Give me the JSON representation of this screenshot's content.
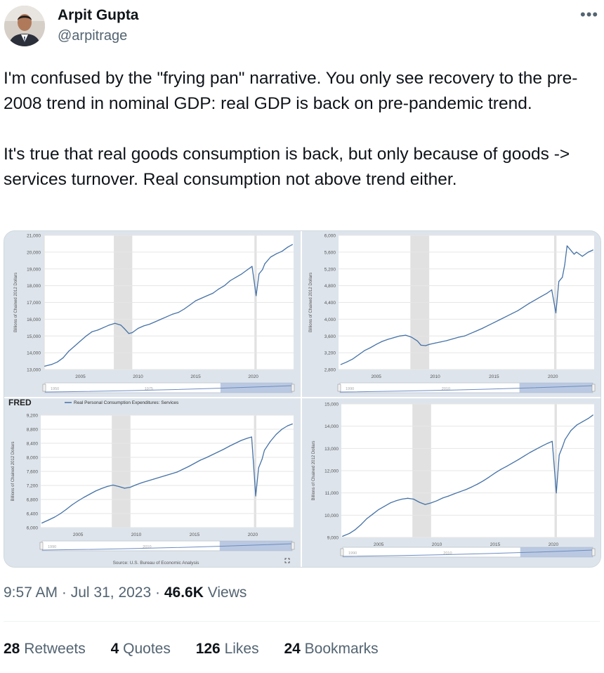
{
  "author": {
    "name": "Arpit Gupta",
    "handle": "@arpitrage"
  },
  "tweet": {
    "text": "I'm confused by the \"frying pan\" narrative. You only see recovery to the pre-2008 trend in nominal GDP: real GDP is back on pre-pandemic trend.\n\nIt's true that real goods consumption is back, but only because of goods -> services turnover. Real consumption not above trend either."
  },
  "more_icon": "more-horizontal-icon",
  "meta": {
    "time": "9:57 AM",
    "date": "Jul 31, 2023",
    "views_count": "46.6K",
    "views_label": "Views"
  },
  "stats": [
    {
      "count": "28",
      "label": "Retweets"
    },
    {
      "count": "4",
      "label": "Quotes"
    },
    {
      "count": "126",
      "label": "Likes"
    },
    {
      "count": "24",
      "label": "Bookmarks"
    }
  ],
  "colors": {
    "line": "#4572a7",
    "recession": "#e1e1e1",
    "panel": "#dde4ec"
  },
  "fred_logo": "FRED",
  "chart_source": "Source: U.S. Bureau of Economic Analysis",
  "fullscreen_icon": "fullscreen-icon",
  "chart_data": [
    {
      "type": "line",
      "ylabel": "Billions of Chained 2012 Dollars",
      "xlim": [
        2001.8,
        2023.5
      ],
      "ylim": [
        13000,
        21000
      ],
      "yticks": [
        "13,000",
        "14,000",
        "15,000",
        "16,000",
        "17,000",
        "18,000",
        "19,000",
        "20,000",
        "21,000"
      ],
      "xticks": [
        "2005",
        "2010",
        "2015",
        "2020"
      ],
      "recessions": [
        [
          2001.2,
          2001.9
        ],
        [
          2007.9,
          2009.5
        ],
        [
          2020.1,
          2020.3
        ]
      ],
      "nav_labels": [
        "1950",
        "1975"
      ],
      "x": [
        2001.9,
        2002.5,
        2003,
        2003.5,
        2004,
        2004.5,
        2005,
        2005.5,
        2006,
        2006.5,
        2007,
        2007.5,
        2008,
        2008.5,
        2008.8,
        2009.2,
        2009.5,
        2010,
        2010.5,
        2011,
        2011.5,
        2012,
        2012.5,
        2013,
        2013.5,
        2014,
        2014.5,
        2015,
        2015.5,
        2016,
        2016.5,
        2017,
        2017.5,
        2018,
        2018.5,
        2019,
        2019.5,
        2019.9,
        2020.25,
        2020.5,
        2020.8,
        2021,
        2021.5,
        2022,
        2022.5,
        2023,
        2023.4
      ],
      "values": [
        13200,
        13300,
        13450,
        13700,
        14100,
        14400,
        14700,
        15000,
        15250,
        15350,
        15500,
        15650,
        15750,
        15650,
        15450,
        15150,
        15200,
        15450,
        15600,
        15700,
        15850,
        16000,
        16150,
        16300,
        16400,
        16600,
        16850,
        17100,
        17250,
        17400,
        17550,
        17800,
        18000,
        18300,
        18500,
        18700,
        18950,
        19150,
        17400,
        18700,
        18950,
        19300,
        19700,
        19900,
        20050,
        20300,
        20450
      ]
    },
    {
      "type": "line",
      "ylabel": "Billions of Chained 2012 Dollars",
      "xlim": [
        2001.8,
        2023.5
      ],
      "ylim": [
        2800,
        6000
      ],
      "yticks": [
        "2,800",
        "3,200",
        "3,600",
        "4,000",
        "4,400",
        "4,800",
        "5,200",
        "5,600",
        "6,000"
      ],
      "xticks": [
        "2005",
        "2010",
        "2015",
        "2020"
      ],
      "recessions": [
        [
          2007.9,
          2009.5
        ],
        [
          2020.1,
          2020.3
        ]
      ],
      "nav_labels": [
        "1990",
        "2010"
      ],
      "x": [
        2002,
        2002.5,
        2003,
        2003.5,
        2004,
        2004.5,
        2005,
        2005.5,
        2006,
        2006.5,
        2007,
        2007.5,
        2008,
        2008.5,
        2008.8,
        2009.2,
        2009.5,
        2010,
        2010.5,
        2011,
        2011.5,
        2012,
        2012.5,
        2013,
        2013.5,
        2014,
        2014.5,
        2015,
        2015.5,
        2016,
        2016.5,
        2017,
        2017.5,
        2018,
        2018.5,
        2019,
        2019.5,
        2019.9,
        2020.25,
        2020.5,
        2020.8,
        2021,
        2021.2,
        2021.5,
        2021.8,
        2022,
        2022.5,
        2023,
        2023.4
      ],
      "values": [
        2920,
        2980,
        3050,
        3150,
        3250,
        3320,
        3400,
        3470,
        3520,
        3560,
        3600,
        3620,
        3570,
        3480,
        3380,
        3370,
        3400,
        3430,
        3460,
        3490,
        3530,
        3570,
        3600,
        3660,
        3720,
        3780,
        3850,
        3920,
        3990,
        4060,
        4130,
        4200,
        4290,
        4380,
        4460,
        4540,
        4620,
        4700,
        4150,
        4900,
        5000,
        5300,
        5750,
        5650,
        5550,
        5600,
        5500,
        5600,
        5650
      ]
    },
    {
      "type": "line",
      "title": "Real Personal Consumption Expenditures: Services",
      "ylabel": "Billions of Chained 2012 Dollars",
      "xlim": [
        2001.8,
        2023.5
      ],
      "ylim": [
        6000,
        9200
      ],
      "yticks": [
        "6,000",
        "6,400",
        "6,800",
        "7,200",
        "7,600",
        "8,000",
        "8,400",
        "8,800",
        "9,200"
      ],
      "xticks": [
        "2005",
        "2010",
        "2015",
        "2020"
      ],
      "recessions": [
        [
          2007.9,
          2009.5
        ],
        [
          2020.1,
          2020.3
        ]
      ],
      "nav_labels": [
        "1990",
        "2010"
      ],
      "x": [
        2001.9,
        2002.5,
        2003,
        2003.5,
        2004,
        2004.5,
        2005,
        2005.5,
        2006,
        2006.5,
        2007,
        2007.5,
        2008,
        2008.5,
        2009,
        2009.5,
        2010,
        2010.5,
        2011,
        2011.5,
        2012,
        2012.5,
        2013,
        2013.5,
        2014,
        2014.5,
        2015,
        2015.5,
        2016,
        2016.5,
        2017,
        2017.5,
        2018,
        2018.5,
        2019,
        2019.5,
        2019.9,
        2020.25,
        2020.5,
        2020.8,
        2021,
        2021.5,
        2022,
        2022.5,
        2023,
        2023.4
      ],
      "values": [
        6130,
        6220,
        6300,
        6400,
        6520,
        6650,
        6760,
        6860,
        6950,
        7040,
        7110,
        7170,
        7210,
        7170,
        7120,
        7150,
        7220,
        7280,
        7330,
        7380,
        7430,
        7480,
        7530,
        7580,
        7660,
        7740,
        7830,
        7920,
        7990,
        8070,
        8150,
        8230,
        8320,
        8400,
        8480,
        8540,
        8580,
        6900,
        7700,
        7950,
        8200,
        8450,
        8650,
        8800,
        8900,
        8950
      ]
    },
    {
      "type": "line",
      "ylabel": "Billions of Chained 2012 Dollars",
      "xlim": [
        2001.8,
        2023.5
      ],
      "ylim": [
        9000,
        15000
      ],
      "yticks": [
        "9,000",
        "10,000",
        "11,000",
        "12,000",
        "13,000",
        "14,000",
        "15,000"
      ],
      "xticks": [
        "2005",
        "2010",
        "2015",
        "2020"
      ],
      "recessions": [
        [
          2007.9,
          2009.5
        ],
        [
          2020.1,
          2020.3
        ]
      ],
      "nav_labels": [
        "1990",
        "2010"
      ],
      "x": [
        2001.9,
        2002.5,
        2003,
        2003.5,
        2004,
        2004.5,
        2005,
        2005.5,
        2006,
        2006.5,
        2007,
        2007.5,
        2008,
        2008.5,
        2009,
        2009.5,
        2010,
        2010.5,
        2011,
        2011.5,
        2012,
        2012.5,
        2013,
        2013.5,
        2014,
        2014.5,
        2015,
        2015.5,
        2016,
        2016.5,
        2017,
        2017.5,
        2018,
        2018.5,
        2019,
        2019.5,
        2019.9,
        2020.25,
        2020.5,
        2020.8,
        2021,
        2021.5,
        2022,
        2022.5,
        2023,
        2023.4
      ],
      "values": [
        9050,
        9180,
        9350,
        9580,
        9850,
        10050,
        10250,
        10400,
        10550,
        10650,
        10720,
        10760,
        10720,
        10580,
        10480,
        10550,
        10650,
        10770,
        10860,
        10960,
        11060,
        11150,
        11270,
        11400,
        11550,
        11720,
        11900,
        12060,
        12200,
        12350,
        12500,
        12660,
        12820,
        12960,
        13100,
        13230,
        13320,
        11000,
        12700,
        13100,
        13400,
        13800,
        14050,
        14200,
        14350,
        14500
      ]
    }
  ]
}
